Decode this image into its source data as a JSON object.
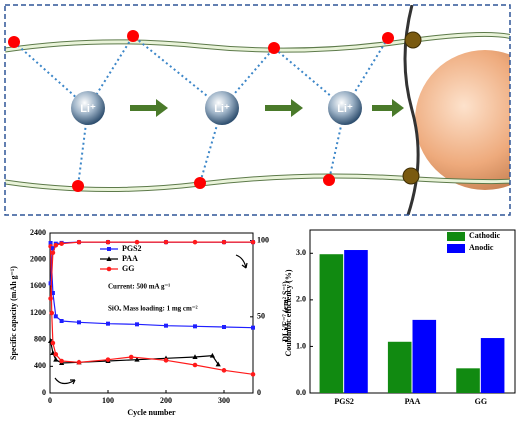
{
  "diagram": {
    "ion_labels": [
      "Li⁺",
      "Li⁺",
      "Li⁺"
    ]
  },
  "chart_data": [
    {
      "type": "line",
      "xlabel": "Cycle number",
      "ylabel": "Specific capacity (mAh g⁻¹)",
      "y2label": "Coulombic efficiency (%)",
      "xlim": [
        0,
        350
      ],
      "xticks": [
        0,
        100,
        200,
        300
      ],
      "ylim": [
        0,
        2400
      ],
      "yticks": [
        0,
        400,
        800,
        1200,
        1600,
        2000,
        2400
      ],
      "y2lim": [
        0,
        105
      ],
      "y2ticks": [
        0,
        50,
        100
      ],
      "legend": "upper center",
      "annotations": [
        "Current: 500 mA g⁻¹",
        "SiOₓ Mass loading: 1 mg cm⁻²"
      ],
      "series": [
        {
          "name": "PGS2",
          "color": "#1f1fff",
          "marker": "square",
          "x": [
            1,
            5,
            10,
            20,
            50,
            100,
            150,
            200,
            250,
            300,
            350
          ],
          "values": [
            2250,
            1500,
            1150,
            1080,
            1060,
            1040,
            1030,
            1010,
            1000,
            990,
            980
          ]
        },
        {
          "name": "PAA",
          "color": "#000000",
          "marker": "triangle",
          "x": [
            1,
            5,
            10,
            20,
            50,
            100,
            150,
            200,
            250,
            280,
            290
          ],
          "values": [
            780,
            600,
            500,
            450,
            460,
            480,
            500,
            520,
            540,
            560,
            430
          ]
        },
        {
          "name": "GG",
          "color": "#ff1a1a",
          "marker": "circle",
          "x": [
            1,
            3,
            5,
            10,
            20,
            50,
            100,
            140,
            200,
            250,
            300,
            350
          ],
          "values": [
            2200,
            1200,
            750,
            580,
            480,
            460,
            500,
            540,
            490,
            420,
            340,
            280
          ]
        },
        {
          "color": "#1f1fff",
          "marker": "square",
          "axis": "y2",
          "x": [
            1,
            5,
            10,
            20,
            50,
            100,
            200,
            300,
            350
          ],
          "values": [
            72,
            95,
            98,
            98.5,
            99,
            99,
            99,
            99,
            99
          ]
        },
        {
          "color": "#ff1a1a",
          "marker": "circle",
          "axis": "y2",
          "x": [
            1,
            5,
            10,
            20,
            50,
            100,
            150,
            200,
            250,
            300,
            350
          ],
          "values": [
            62,
            92,
            97,
            98,
            99,
            99,
            99,
            99,
            99,
            99,
            99
          ]
        }
      ]
    },
    {
      "type": "bar",
      "ylabel": "DLi/E⁻⁷ (cm² S⁻¹)",
      "categories": [
        "PGS2",
        "PAA",
        "GG"
      ],
      "ylim": [
        0,
        3.5
      ],
      "yticks": [
        {
          "value": 0,
          "label": "0.0"
        },
        {
          "value": 1,
          "label": "1.0"
        },
        {
          "value": 2,
          "label": "2.0"
        },
        {
          "value": 3,
          "label": "3.0"
        }
      ],
      "legend": "upper right",
      "series": [
        {
          "name": "Cathodic",
          "color": "#118a11",
          "values": [
            2.98,
            1.1,
            0.53
          ]
        },
        {
          "name": "Anodic",
          "color": "#0000ff",
          "values": [
            3.07,
            1.57,
            1.18
          ]
        }
      ]
    }
  ]
}
